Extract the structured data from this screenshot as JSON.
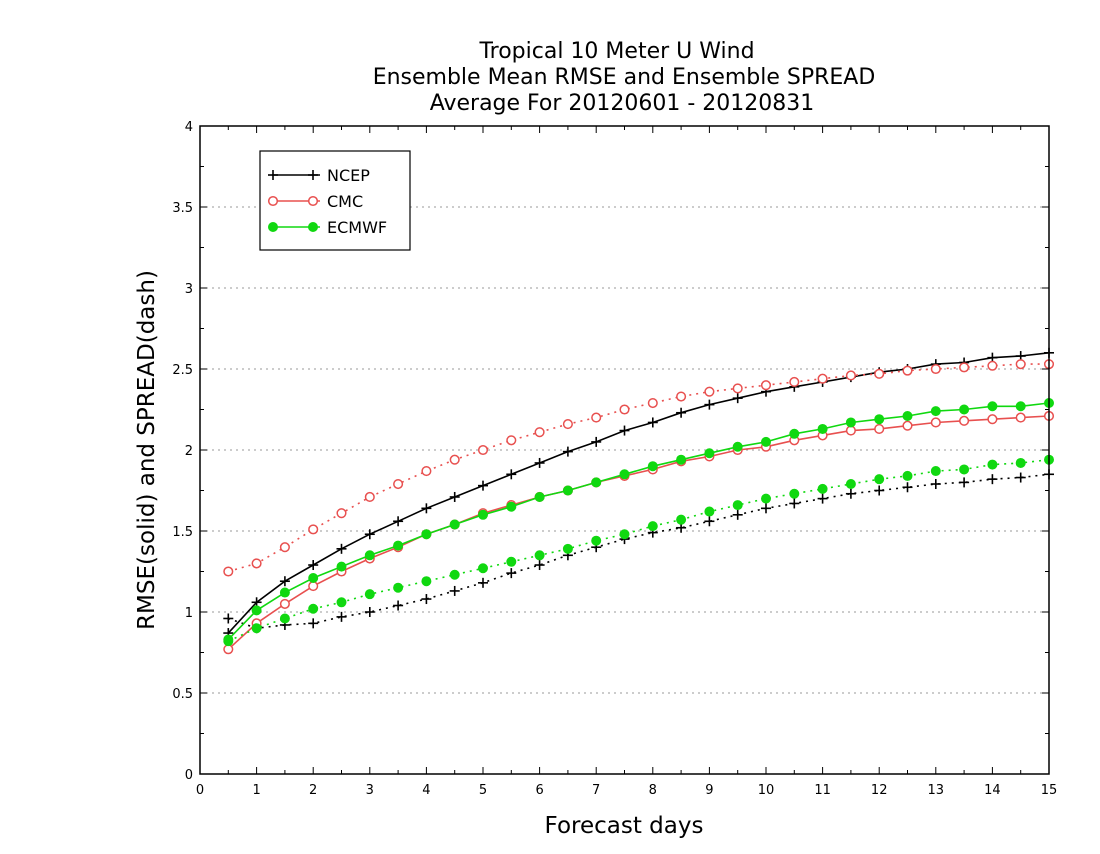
{
  "chart_data": {
    "type": "line",
    "title": [
      "Tropical 10 Meter U Wind",
      "Ensemble Mean RMSE and Ensemble SPREAD",
      "Average For 20120601 - 20120831"
    ],
    "xlabel": "Forecast days",
    "ylabel": "RMSE(solid) and SPREAD(dash)",
    "xlim": [
      0,
      15
    ],
    "ylim": [
      0,
      4
    ],
    "xticks": [
      0,
      1,
      2,
      3,
      4,
      5,
      6,
      7,
      8,
      9,
      10,
      11,
      12,
      13,
      14,
      15
    ],
    "yticks": [
      0,
      0.5,
      1,
      1.5,
      2,
      2.5,
      3,
      3.5,
      4
    ],
    "ytick_labels": [
      "0",
      "0.5",
      "1",
      "1.5",
      "2",
      "2.5",
      "3",
      "3.5",
      "4"
    ],
    "grid": "horizontal dotted",
    "legend_position": "top-left",
    "x": [
      0.5,
      1,
      1.5,
      2,
      2.5,
      3,
      3.5,
      4,
      4.5,
      5,
      5.5,
      6,
      6.5,
      7,
      7.5,
      8,
      8.5,
      9,
      9.5,
      10,
      10.5,
      11,
      11.5,
      12,
      12.5,
      13,
      13.5,
      14,
      14.5,
      15
    ],
    "series": [
      {
        "name": "NCEP",
        "metric": "RMSE",
        "style": "solid",
        "marker": "plus",
        "color": "#000000",
        "values": [
          0.87,
          1.06,
          1.19,
          1.29,
          1.39,
          1.48,
          1.56,
          1.64,
          1.71,
          1.78,
          1.85,
          1.92,
          1.99,
          2.05,
          2.12,
          2.17,
          2.23,
          2.28,
          2.32,
          2.36,
          2.39,
          2.42,
          2.45,
          2.48,
          2.5,
          2.53,
          2.54,
          2.57,
          2.58,
          2.6
        ]
      },
      {
        "name": "NCEP",
        "metric": "SPREAD",
        "style": "dash",
        "marker": "plus",
        "color": "#000000",
        "values": [
          0.96,
          0.9,
          0.92,
          0.93,
          0.97,
          1.0,
          1.04,
          1.08,
          1.13,
          1.18,
          1.24,
          1.29,
          1.35,
          1.4,
          1.45,
          1.49,
          1.52,
          1.56,
          1.6,
          1.64,
          1.67,
          1.7,
          1.73,
          1.75,
          1.77,
          1.79,
          1.8,
          1.82,
          1.83,
          1.85
        ]
      },
      {
        "name": "CMC",
        "metric": "RMSE",
        "style": "solid",
        "marker": "open-circle",
        "color": "#e8504f",
        "values": [
          0.77,
          0.93,
          1.05,
          1.16,
          1.25,
          1.33,
          1.4,
          1.48,
          1.54,
          1.61,
          1.66,
          1.71,
          1.75,
          1.8,
          1.84,
          1.88,
          1.93,
          1.96,
          2.0,
          2.02,
          2.06,
          2.09,
          2.12,
          2.13,
          2.15,
          2.17,
          2.18,
          2.19,
          2.2,
          2.21
        ]
      },
      {
        "name": "CMC",
        "metric": "SPREAD",
        "style": "dash",
        "marker": "open-circle",
        "color": "#e8504f",
        "values": [
          1.25,
          1.3,
          1.4,
          1.51,
          1.61,
          1.71,
          1.79,
          1.87,
          1.94,
          2.0,
          2.06,
          2.11,
          2.16,
          2.2,
          2.25,
          2.29,
          2.33,
          2.36,
          2.38,
          2.4,
          2.42,
          2.44,
          2.46,
          2.47,
          2.49,
          2.5,
          2.51,
          2.52,
          2.53,
          2.53
        ]
      },
      {
        "name": "ECMWF",
        "metric": "RMSE",
        "style": "solid",
        "marker": "filled-circle",
        "color": "#10d810",
        "values": [
          0.83,
          1.01,
          1.12,
          1.21,
          1.28,
          1.35,
          1.41,
          1.48,
          1.54,
          1.6,
          1.65,
          1.71,
          1.75,
          1.8,
          1.85,
          1.9,
          1.94,
          1.98,
          2.02,
          2.05,
          2.1,
          2.13,
          2.17,
          2.19,
          2.21,
          2.24,
          2.25,
          2.27,
          2.27,
          2.29
        ]
      },
      {
        "name": "ECMWF",
        "metric": "SPREAD",
        "style": "dash",
        "marker": "filled-circle",
        "color": "#10d810",
        "values": [
          0.82,
          0.9,
          0.96,
          1.02,
          1.06,
          1.11,
          1.15,
          1.19,
          1.23,
          1.27,
          1.31,
          1.35,
          1.39,
          1.44,
          1.48,
          1.53,
          1.57,
          1.62,
          1.66,
          1.7,
          1.73,
          1.76,
          1.79,
          1.82,
          1.84,
          1.87,
          1.88,
          1.91,
          1.92,
          1.94
        ]
      }
    ],
    "legend": [
      {
        "label": "NCEP",
        "marker": "plus",
        "color": "#000000"
      },
      {
        "label": "CMC",
        "marker": "open-circle",
        "color": "#e8504f"
      },
      {
        "label": "ECMWF",
        "marker": "filled-circle",
        "color": "#10d810"
      }
    ]
  }
}
